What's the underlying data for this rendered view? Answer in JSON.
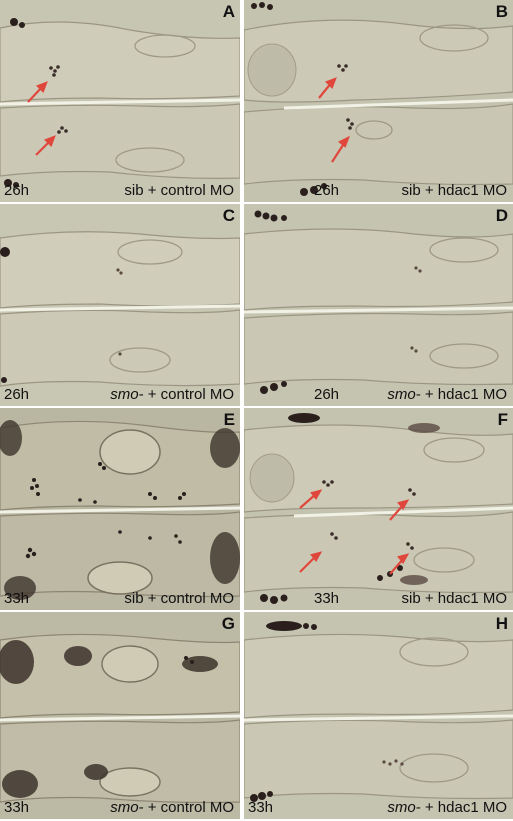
{
  "panels": [
    {
      "letter": "A",
      "time": "26h",
      "genotype": "sib",
      "treatment": "+ control MO"
    },
    {
      "letter": "B",
      "time": "26h",
      "genotype": "sib",
      "treatment": "+ hdac1 MO"
    },
    {
      "letter": "C",
      "time": "26h",
      "genotype": "smo-",
      "treatment": "+ control MO"
    },
    {
      "letter": "D",
      "time": "26h",
      "genotype": "smo-",
      "treatment": "+ hdac1 MO"
    },
    {
      "letter": "E",
      "time": "33h",
      "genotype": "sib",
      "treatment": "+ control MO"
    },
    {
      "letter": "F",
      "time": "33h",
      "genotype": "sib",
      "treatment": "+ hdac1 MO"
    },
    {
      "letter": "G",
      "time": "33h",
      "genotype": "smo-",
      "treatment": "+ control MO"
    },
    {
      "letter": "H",
      "time": "33h",
      "genotype": "smo-",
      "treatment": "+ hdac1 MO"
    }
  ],
  "colors": {
    "background": "#c5c4b1",
    "stain": "#2a1f1c",
    "arrow": "#e0473c",
    "text": "#111111"
  }
}
